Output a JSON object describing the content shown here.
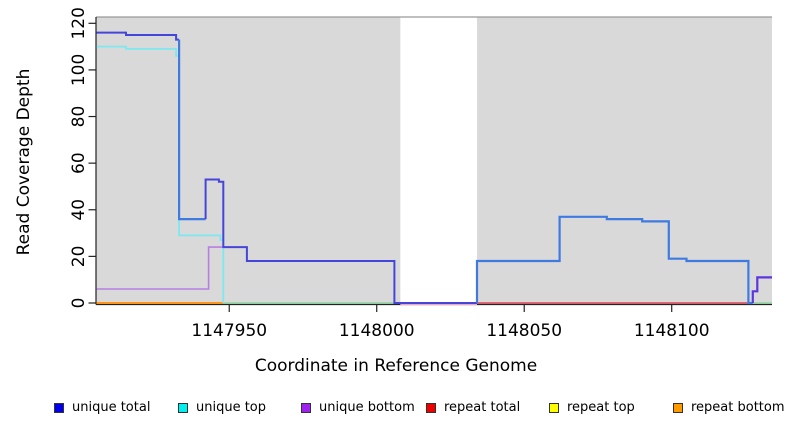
{
  "chart_data": {
    "type": "line",
    "subtype": "step-coverage-plot",
    "title": "",
    "xlabel": "Coordinate in Reference Genome",
    "ylabel": "Read Coverage Depth",
    "xlim": [
      1147905,
      1148134
    ],
    "ylim": [
      0,
      120
    ],
    "xticks": [
      1147950,
      1148000,
      1148050,
      1148100
    ],
    "yticks": [
      0,
      20,
      40,
      60,
      80,
      100,
      120
    ],
    "grid": false,
    "plot_bg_color": "#d9d9d9",
    "shaded_regions": [
      [
        1147905,
        1148008
      ],
      [
        1148034,
        1148134
      ]
    ],
    "unshaded_gap": [
      1148008,
      1148034
    ],
    "legend_position": "bottom",
    "legend": [
      {
        "label": "unique total",
        "color": "#0000ee"
      },
      {
        "label": "unique top",
        "color": "#00eeee"
      },
      {
        "label": "unique bottom",
        "color": "#a020f0"
      },
      {
        "label": "repeat total",
        "color": "#ee0000"
      },
      {
        "label": "repeat top",
        "color": "#ffff00"
      },
      {
        "label": "repeat bottom",
        "color": "#ff9900"
      }
    ],
    "series": [
      {
        "name": "unique total",
        "format": "step_changes [x, depth_from_x]",
        "steps": [
          [
            1147905,
            116
          ],
          [
            1147915,
            115
          ],
          [
            1147932,
            113
          ],
          [
            1147933,
            36
          ],
          [
            1147942,
            53
          ],
          [
            1147946,
            52
          ],
          [
            1147948,
            24
          ],
          [
            1147956,
            18
          ],
          [
            1148006,
            0
          ],
          [
            1148034,
            18
          ],
          [
            1148062,
            37
          ],
          [
            1148078,
            36
          ],
          [
            1148090,
            35
          ],
          [
            1148099,
            19
          ],
          [
            1148105,
            18
          ],
          [
            1148126,
            0
          ],
          [
            1148127,
            5
          ],
          [
            1148129,
            11
          ]
        ]
      },
      {
        "name": "unique top",
        "format": "step_changes [x, depth_from_x]",
        "steps": [
          [
            1147905,
            110
          ],
          [
            1147915,
            109
          ],
          [
            1147932,
            106
          ],
          [
            1147933,
            29
          ],
          [
            1147947,
            27
          ],
          [
            1147948,
            0
          ],
          [
            1148034,
            18
          ],
          [
            1148062,
            37
          ],
          [
            1148078,
            36
          ],
          [
            1148090,
            35
          ],
          [
            1148099,
            19
          ],
          [
            1148105,
            18
          ],
          [
            1148126,
            0
          ]
        ]
      },
      {
        "name": "unique bottom",
        "format": "step_changes [x, depth_from_x]",
        "steps": [
          [
            1147905,
            6
          ],
          [
            1147943,
            24
          ],
          [
            1147956,
            18
          ],
          [
            1148006,
            0
          ],
          [
            1148127,
            5
          ],
          [
            1148129,
            11
          ]
        ]
      },
      {
        "name": "repeat total",
        "format": "step_changes [x, depth_from_x]",
        "steps": [
          [
            1147905,
            0
          ]
        ]
      },
      {
        "name": "repeat top",
        "format": "step_changes [x, depth_from_x]",
        "steps": [
          [
            1147905,
            0
          ]
        ]
      },
      {
        "name": "repeat bottom",
        "format": "step_changes [x, depth_from_x]",
        "steps": [
          [
            1147905,
            0
          ]
        ]
      }
    ],
    "rendered_segments": [
      {
        "name": "gap-underline-pink",
        "color": "#e9a9c9",
        "width": 1.2,
        "points": [
          [
            1148008,
            -0.7
          ],
          [
            1148034,
            -0.7
          ]
        ]
      },
      {
        "name": "zero-line-green-left",
        "color": "#8ed5a0",
        "width": 1.6,
        "points": [
          [
            1147948,
            0
          ],
          [
            1148008,
            0
          ]
        ]
      },
      {
        "name": "zero-line-green-right",
        "color": "#8ed5a0",
        "width": 1.6,
        "points": [
          [
            1148126,
            0
          ],
          [
            1148134,
            0
          ]
        ]
      },
      {
        "name": "zero-line-orange",
        "color": "#ff9518",
        "width": 2,
        "points": [
          [
            1147905,
            0
          ],
          [
            1147948,
            0
          ]
        ]
      },
      {
        "name": "zero-line-red",
        "color": "#dd4455",
        "width": 1.6,
        "points": [
          [
            1148034,
            0
          ],
          [
            1148126,
            0
          ]
        ]
      },
      {
        "name": "unique-top-line",
        "color": "#7de8ef",
        "width": 1.8,
        "points": [
          [
            1147905,
            110
          ],
          [
            1147915,
            110
          ],
          [
            1147915,
            109
          ],
          [
            1147932,
            109
          ],
          [
            1147932,
            106
          ],
          [
            1147933,
            106
          ],
          [
            1147933,
            29
          ],
          [
            1147947,
            29
          ],
          [
            1147947,
            27
          ],
          [
            1147948,
            27
          ],
          [
            1147948,
            0
          ]
        ]
      },
      {
        "name": "unique-bottom-line",
        "color": "#b77fe3",
        "width": 1.6,
        "points": [
          [
            1147905,
            6
          ],
          [
            1147943,
            6
          ],
          [
            1147943,
            24
          ],
          [
            1147948,
            24
          ]
        ]
      },
      {
        "name": "unique-total-pregap-high",
        "color": "#4645d9",
        "width": 2,
        "points": [
          [
            1147905,
            116
          ],
          [
            1147915,
            116
          ],
          [
            1147915,
            115
          ],
          [
            1147932,
            115
          ],
          [
            1147932,
            113
          ],
          [
            1147933,
            113
          ]
        ]
      },
      {
        "name": "unique-total-big-drop",
        "color": "#3f7ae1",
        "width": 2.2,
        "points": [
          [
            1147933,
            113
          ],
          [
            1147933,
            36
          ],
          [
            1147942,
            36
          ]
        ]
      },
      {
        "name": "unique-total-mid",
        "color": "#4645d9",
        "width": 2,
        "points": [
          [
            1147942,
            36
          ],
          [
            1147942,
            53
          ],
          [
            1147946.5,
            53
          ],
          [
            1147946.5,
            52
          ],
          [
            1147948,
            52
          ],
          [
            1147948,
            24
          ],
          [
            1147956,
            24
          ],
          [
            1147956,
            18
          ],
          [
            1148006,
            18
          ],
          [
            1148006,
            0
          ],
          [
            1148034,
            0
          ]
        ]
      },
      {
        "name": "unique-total-postgap",
        "color": "#3f7ae1",
        "width": 2.2,
        "points": [
          [
            1148034,
            0
          ],
          [
            1148034,
            18
          ],
          [
            1148062,
            18
          ],
          [
            1148062,
            37
          ],
          [
            1148078,
            37
          ],
          [
            1148078,
            36
          ],
          [
            1148090,
            36
          ],
          [
            1148090,
            35
          ],
          [
            1148099,
            35
          ],
          [
            1148099,
            19
          ],
          [
            1148105,
            19
          ],
          [
            1148105,
            18
          ],
          [
            1148126,
            18
          ],
          [
            1148126,
            0
          ],
          [
            1148127.5,
            0
          ]
        ]
      },
      {
        "name": "unique-total-right-violet",
        "color": "#5c35e0",
        "width": 2.2,
        "points": [
          [
            1148127.5,
            0
          ],
          [
            1148127.5,
            5
          ],
          [
            1148129,
            5
          ],
          [
            1148129,
            11
          ],
          [
            1148134,
            11
          ]
        ]
      }
    ]
  }
}
